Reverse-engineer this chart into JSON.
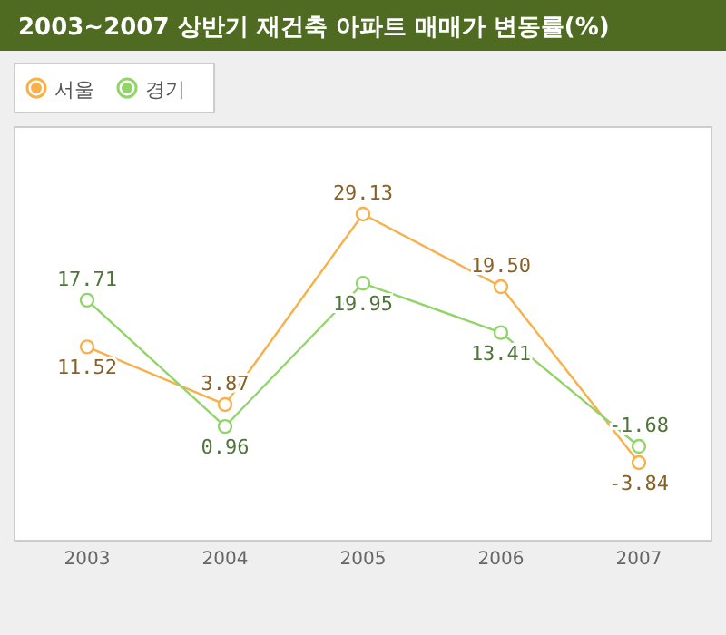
{
  "chart_data": {
    "type": "line",
    "title": "2003~2007 상반기 재건축 아파트 매매가 변동률(%)",
    "categories": [
      "2003",
      "2004",
      "2005",
      "2006",
      "2007"
    ],
    "series": [
      {
        "name": "서울",
        "color": "#f7b04a",
        "values": [
          11.52,
          3.87,
          29.13,
          19.5,
          -3.84
        ],
        "value_labels": [
          "11.52",
          "3.87",
          "29.13",
          "19.50",
          "-3.84"
        ]
      },
      {
        "name": "경기",
        "color": "#92d46a",
        "values": [
          17.71,
          0.96,
          19.95,
          13.41,
          -1.68
        ],
        "value_labels": [
          "17.71",
          "0.96",
          "19.95",
          "13.41",
          "-1.68"
        ]
      }
    ],
    "marker": "circle",
    "legend": "top left",
    "grid": false
  }
}
